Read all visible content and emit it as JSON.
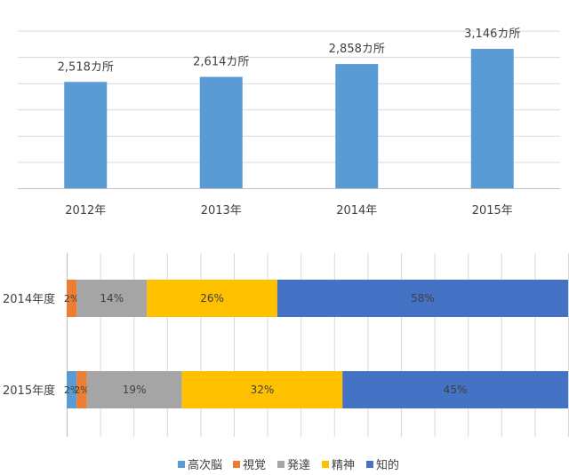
{
  "chart_data": [
    {
      "type": "bar",
      "categories": [
        "2012年",
        "2013年",
        "2014年",
        "2015年"
      ],
      "values": [
        2518,
        2614,
        2858,
        3146
      ],
      "data_labels": [
        "2,518カ所",
        "2,614カ所",
        "2,858カ所",
        "3,146カ所"
      ],
      "color": "#5B9BD5",
      "grid": true,
      "gridline_count": 7,
      "ylim": [
        500,
        3500
      ]
    },
    {
      "type": "bar",
      "orientation": "horizontal-stacked-percent",
      "categories": [
        "2014年度",
        "2015年度"
      ],
      "series": [
        {
          "name": "高次脳",
          "color": "#5B9BD5",
          "values": [
            0,
            2
          ],
          "labels": [
            "",
            "2%"
          ]
        },
        {
          "name": "視覚",
          "color": "#ED7D31",
          "values": [
            2,
            2
          ],
          "labels": [
            "2%",
            "2%"
          ]
        },
        {
          "name": "発達",
          "color": "#A5A5A5",
          "values": [
            14,
            19
          ],
          "labels": [
            "14%",
            "19%"
          ]
        },
        {
          "name": "精神",
          "color": "#FFC000",
          "values": [
            26,
            32
          ],
          "labels": [
            "26%",
            "32%"
          ]
        },
        {
          "name": "知的",
          "color": "#4472C4",
          "values": [
            58,
            45
          ],
          "labels": [
            "58%",
            "45%"
          ]
        }
      ],
      "xlim": [
        0,
        100
      ],
      "grid": true,
      "legend_position": "bottom"
    }
  ]
}
